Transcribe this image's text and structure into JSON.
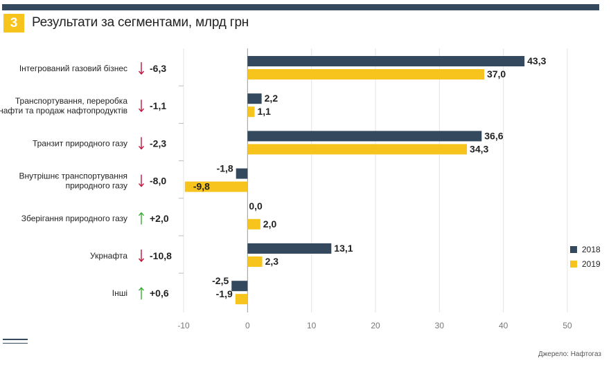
{
  "header": {
    "badge": "3",
    "title": "Результати за сегментами, млрд грн"
  },
  "footer": {
    "source": "Джерело: Нафтогаз"
  },
  "colors": {
    "series_2018": "#34495e",
    "series_2019": "#f7c31d",
    "arrow_down": "#c0143c",
    "arrow_up": "#3aaa35",
    "header_bar": "#34495e"
  },
  "chart_data": {
    "type": "bar",
    "orientation": "horizontal",
    "title": "Результати за сегментами, млрд грн",
    "categories": [
      [
        "Інтегрований газовий бізнес"
      ],
      [
        "Транспортування, переробка",
        "нафти та продаж нафтопродуктів"
      ],
      [
        "Транзит природного газу"
      ],
      [
        "Внутрішнє транспортування",
        "природного газу"
      ],
      [
        "Зберігання природного газу"
      ],
      [
        "Укрнафта"
      ],
      [
        "Інші"
      ]
    ],
    "series": [
      {
        "name": "2018",
        "values": [
          43.3,
          2.2,
          36.6,
          -1.8,
          0.0,
          13.1,
          -2.5
        ],
        "labels": [
          "43,3",
          "2,2",
          "36,6",
          "-1,8",
          "0,0",
          "13,1",
          "-2,5"
        ]
      },
      {
        "name": "2019",
        "values": [
          37.0,
          1.1,
          34.3,
          -9.8,
          2.0,
          2.3,
          -1.9
        ],
        "labels": [
          "37,0",
          "1,1",
          "34,3",
          "-9,8",
          "2,0",
          "2,3",
          "-1,9"
        ]
      }
    ],
    "changes": [
      {
        "text": "-6,3",
        "direction": "down"
      },
      {
        "text": "-1,1",
        "direction": "down"
      },
      {
        "text": "-2,3",
        "direction": "down"
      },
      {
        "text": "-8,0",
        "direction": "down"
      },
      {
        "text": "+2,0",
        "direction": "up"
      },
      {
        "text": "-10,8",
        "direction": "down"
      },
      {
        "text": "+0,6",
        "direction": "up"
      }
    ],
    "xlim": [
      -10,
      50
    ],
    "xticks": [
      -10,
      0,
      10,
      20,
      30,
      40,
      50
    ],
    "grid": true,
    "legend_position": "right"
  }
}
